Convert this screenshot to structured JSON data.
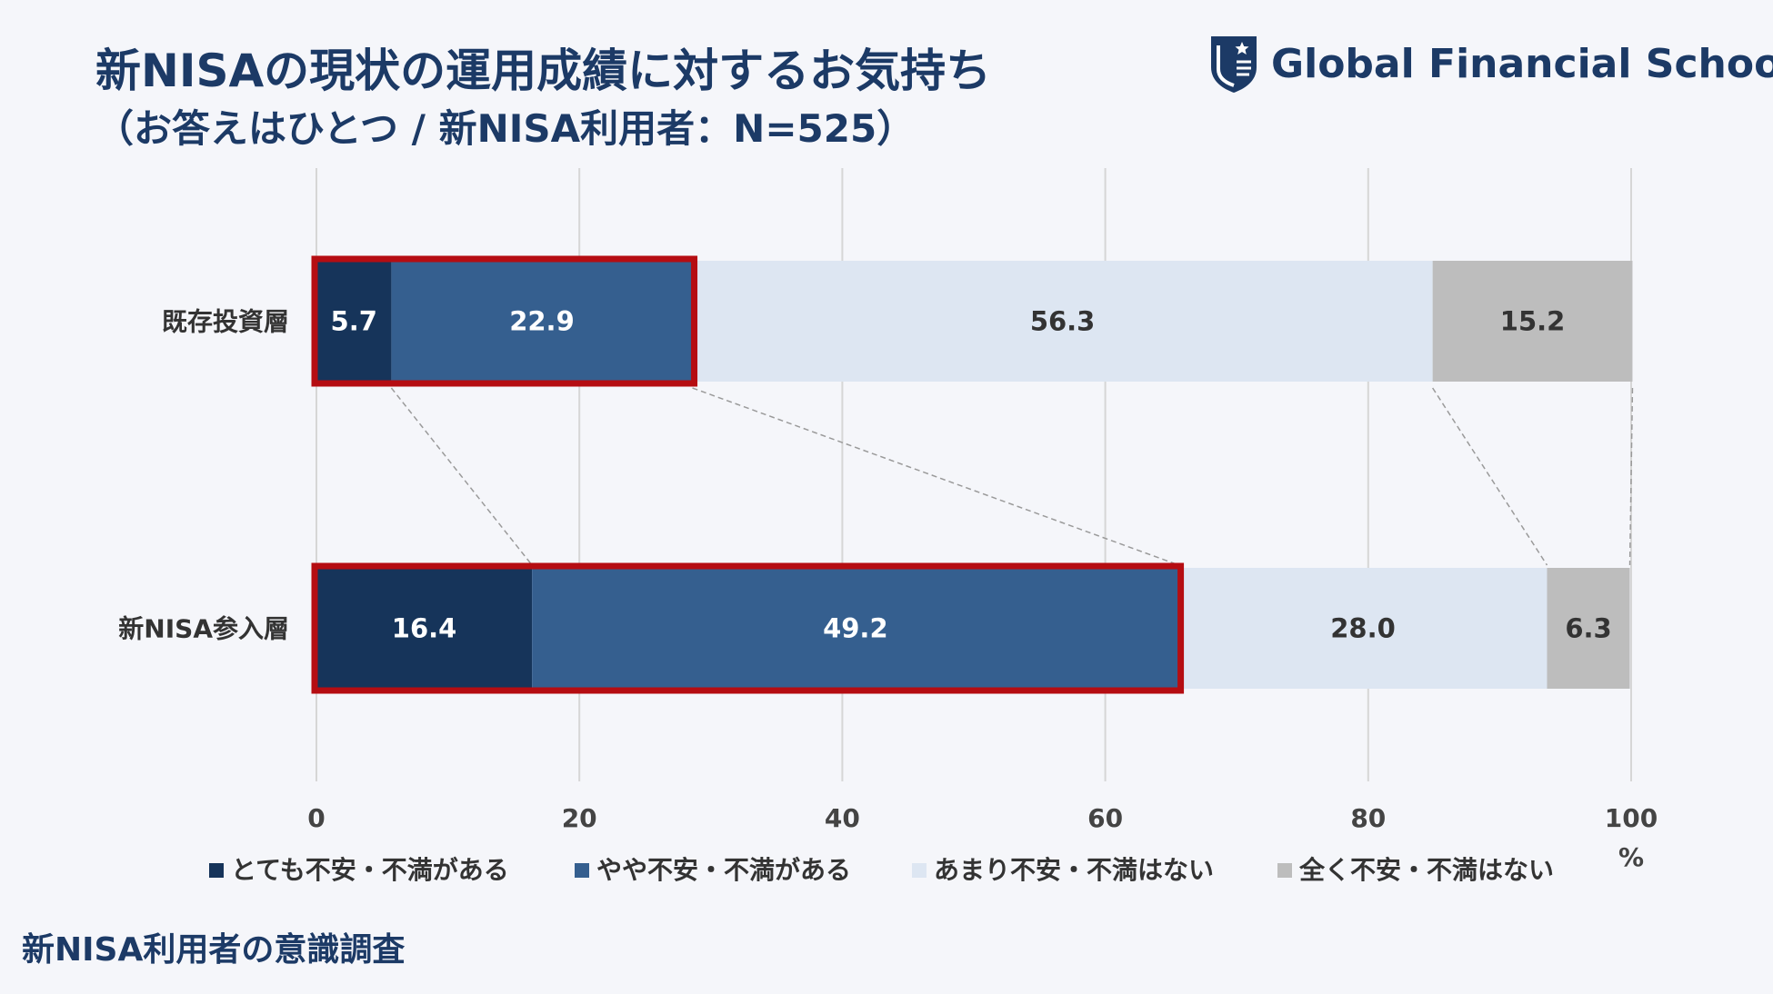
{
  "header": {
    "title": "新NISAの現状の運用成績に対するお気持ち",
    "subtitle": "（お答えはひとつ / 新NISA利用者：N=525）",
    "brand": "Global Financial School"
  },
  "footer": {
    "text": "新NISA利用者の意識調査"
  },
  "colors": {
    "very": "#16345a",
    "somewhat": "#355f8f",
    "not_much": "#dde6f2",
    "none": "#bdbdbd",
    "highlight": "#b50d12",
    "connector": "#9a9a9a",
    "grid": "#d6d6d6"
  },
  "chart_data": {
    "type": "bar",
    "orientation": "horizontal",
    "stacked": true,
    "categories": [
      "既存投資層",
      "新NISA参入層"
    ],
    "series": [
      {
        "name": "とても不安・不満がある",
        "values": [
          5.7,
          16.4
        ]
      },
      {
        "name": "やや不安・不満がある",
        "values": [
          22.9,
          49.2
        ]
      },
      {
        "name": "あまり不安・不満はない",
        "values": [
          56.3,
          28.0
        ]
      },
      {
        "name": "全く不安・不満はない",
        "values": [
          15.2,
          6.3
        ]
      }
    ],
    "value_labels": [
      [
        "5.7",
        "22.9",
        "56.3",
        "15.2"
      ],
      [
        "16.4",
        "49.2",
        "28.0",
        "6.3"
      ]
    ],
    "xlim": [
      0,
      100
    ],
    "xticks": [
      "0",
      "20",
      "40",
      "60",
      "80",
      "100"
    ],
    "xunit": "%",
    "grid": true,
    "legend_position": "bottom",
    "highlight_series_count": 2
  }
}
